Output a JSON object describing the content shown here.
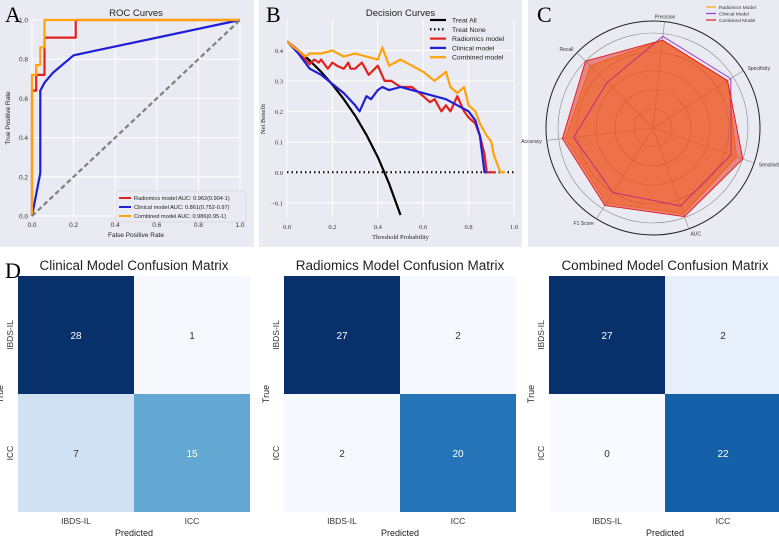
{
  "panel_letters": {
    "a": "A",
    "b": "B",
    "c": "C",
    "d": "D"
  },
  "colors": {
    "radiomics": "#e3211d",
    "clinical": "#1f1fd8",
    "combined": "#ffa20c",
    "chance": "#808080",
    "treat_all": "#000000",
    "cm_dark": "#08306b",
    "cm_light": "#f7fbff"
  },
  "chart_data": [
    {
      "type": "line",
      "id": "roc",
      "title": "ROC Curves",
      "xlabel": "False Positive Rate",
      "ylabel": "True Positive Rate",
      "xlim": [
        0,
        1
      ],
      "ylim": [
        0,
        1
      ],
      "xticks": [
        "0.0",
        "0.2",
        "0.4",
        "0.6",
        "0.8",
        "1.0"
      ],
      "yticks": [
        "0.0",
        "0.2",
        "0.4",
        "0.6",
        "0.8",
        "1.0"
      ],
      "legend_position": "bottom-right",
      "series": [
        {
          "name": "Radiomics model AUC: 0.962(0.904-1)",
          "color": "#e3211d",
          "x": [
            0,
            0,
            0.02,
            0.02,
            0.06,
            0.06,
            0.11,
            0.11,
            0.21,
            0.21,
            1.0
          ],
          "y": [
            0,
            0.64,
            0.64,
            0.72,
            0.72,
            0.91,
            0.91,
            0.91,
            0.91,
            1.0,
            1.0
          ]
        },
        {
          "name": "Clinical model AUC: 0.861(0.752-0.97)",
          "color": "#1f1fd8",
          "x": [
            0,
            0.04,
            0.04,
            0.06,
            0.1,
            0.2,
            1.0
          ],
          "y": [
            0,
            0.22,
            0.64,
            0.68,
            0.73,
            0.82,
            1.0
          ]
        },
        {
          "name": "Combined model AUC: 0.986(0.95-1)",
          "color": "#ffa20c",
          "x": [
            0,
            0,
            0.02,
            0.02,
            0.04,
            0.04,
            0.06,
            0.06,
            1.0
          ],
          "y": [
            0,
            0.72,
            0.72,
            0.77,
            0.77,
            0.86,
            0.86,
            1.0,
            1.0
          ]
        },
        {
          "name": "chance",
          "color": "#808080",
          "dashed": true,
          "x": [
            0,
            1
          ],
          "y": [
            0,
            1
          ]
        }
      ]
    },
    {
      "type": "line",
      "id": "dca",
      "title": "Decision Curves",
      "xlabel": "Threshold Probability",
      "ylabel": "Net Benefit",
      "xlim": [
        0,
        1
      ],
      "ylim": [
        -0.15,
        0.5
      ],
      "xticks": [
        "0.0",
        "0.2",
        "0.4",
        "0.6",
        "0.8",
        "1.0"
      ],
      "yticks": [
        "−0.1",
        "0.0",
        "0.1",
        "0.2",
        "0.3",
        "0.4"
      ],
      "legend_position": "top-right",
      "series": [
        {
          "name": "Treat All",
          "color": "#000000",
          "x": [
            0,
            0.05,
            0.1,
            0.15,
            0.2,
            0.25,
            0.3,
            0.35,
            0.4,
            0.45,
            0.5
          ],
          "y": [
            0.43,
            0.4,
            0.367,
            0.33,
            0.288,
            0.24,
            0.186,
            0.123,
            0.05,
            -0.037,
            -0.14
          ]
        },
        {
          "name": "Treat None",
          "color": "#000000",
          "dotted": true,
          "x": [
            0,
            1
          ],
          "y": [
            0,
            0
          ]
        },
        {
          "name": "Radiomics model",
          "color": "#e3211d",
          "x": [
            0,
            0.05,
            0.08,
            0.1,
            0.12,
            0.14,
            0.15,
            0.18,
            0.2,
            0.22,
            0.25,
            0.27,
            0.28,
            0.3,
            0.33,
            0.36,
            0.4,
            0.43,
            0.46,
            0.5,
            0.55,
            0.6,
            0.63,
            0.65,
            0.68,
            0.7,
            0.72,
            0.75,
            0.78,
            0.8,
            0.83,
            0.85,
            0.87,
            0.88,
            0.89,
            0.9,
            0.92
          ],
          "y": [
            0.43,
            0.4,
            0.37,
            0.355,
            0.37,
            0.36,
            0.37,
            0.34,
            0.36,
            0.35,
            0.34,
            0.36,
            0.34,
            0.34,
            0.36,
            0.32,
            0.35,
            0.3,
            0.3,
            0.28,
            0.28,
            0.25,
            0.23,
            0.24,
            0.2,
            0.22,
            0.2,
            0.25,
            0.2,
            0.18,
            0.16,
            0.12,
            0.06,
            0.0,
            0.0,
            0.0,
            0.0
          ]
        },
        {
          "name": "Clinical model",
          "color": "#1f1fd8",
          "x": [
            0,
            0.05,
            0.1,
            0.15,
            0.2,
            0.25,
            0.3,
            0.32,
            0.35,
            0.37,
            0.4,
            0.42,
            0.45,
            0.5,
            0.55,
            0.6,
            0.65,
            0.7,
            0.75,
            0.8,
            0.83,
            0.85,
            0.86,
            0.87,
            0.88
          ],
          "y": [
            0.43,
            0.39,
            0.34,
            0.32,
            0.29,
            0.26,
            0.22,
            0.2,
            0.25,
            0.24,
            0.27,
            0.28,
            0.27,
            0.28,
            0.27,
            0.26,
            0.25,
            0.24,
            0.22,
            0.2,
            0.17,
            0.12,
            0.06,
            0.0,
            0.0
          ]
        },
        {
          "name": "Combined model",
          "color": "#ffa20c",
          "x": [
            0,
            0.03,
            0.05,
            0.08,
            0.1,
            0.15,
            0.2,
            0.25,
            0.3,
            0.35,
            0.4,
            0.42,
            0.45,
            0.5,
            0.55,
            0.6,
            0.65,
            0.7,
            0.72,
            0.75,
            0.78,
            0.8,
            0.83,
            0.85,
            0.88,
            0.9,
            0.91,
            0.92,
            0.94,
            0.96
          ],
          "y": [
            0.43,
            0.41,
            0.4,
            0.38,
            0.39,
            0.39,
            0.4,
            0.38,
            0.39,
            0.38,
            0.37,
            0.41,
            0.35,
            0.37,
            0.35,
            0.33,
            0.3,
            0.33,
            0.28,
            0.26,
            0.28,
            0.22,
            0.2,
            0.16,
            0.12,
            0.1,
            0.06,
            0.04,
            0.0,
            0.0
          ]
        }
      ]
    },
    {
      "type": "radar",
      "id": "radar",
      "axes": [
        "Precision",
        "Specificity",
        "Sensitivity",
        "AUC",
        "F1 Score",
        "Accuracy",
        "Recall"
      ],
      "rmax": 1.0,
      "rings": 5,
      "legend_position": "top-right",
      "series": [
        {
          "name": "Radiomics Model",
          "color": "#ffa20c",
          "values": [
            0.93,
            0.93,
            0.93,
            0.96,
            0.93,
            0.93,
            0.93
          ]
        },
        {
          "name": "Clinical Model",
          "color": "#9b3bd6",
          "values": [
            0.97,
            0.97,
            0.87,
            0.87,
            0.8,
            0.84,
            0.68
          ]
        },
        {
          "name": "Combined Model",
          "color": "#e3211d",
          "values": [
            0.93,
            0.93,
            1.0,
            0.99,
            0.96,
            0.96,
            1.0
          ]
        }
      ]
    },
    {
      "type": "heatmap",
      "id": "cm_clinical",
      "title": "Clinical Model Confusion Matrix",
      "xlabel": "Predicted",
      "ylabel": "True",
      "labels": [
        "IBDS-IL",
        "ICC"
      ],
      "matrix": [
        [
          28,
          1
        ],
        [
          7,
          15
        ]
      ],
      "colors": [
        [
          "#08306b",
          "#f5f9fe"
        ],
        [
          "#cfe1f2",
          "#63a8d3"
        ]
      ],
      "text_colors": [
        [
          "#ffffff",
          "#333333"
        ],
        [
          "#333333",
          "#ffffff"
        ]
      ]
    },
    {
      "type": "heatmap",
      "id": "cm_radiomics",
      "title": "Radiomics Model Confusion Matrix",
      "xlabel": "Predicted",
      "ylabel": "True",
      "labels": [
        "IBDS-IL",
        "ICC"
      ],
      "matrix": [
        [
          27,
          2
        ],
        [
          2,
          20
        ]
      ],
      "colors": [
        [
          "#08306b",
          "#f5f9fe"
        ],
        [
          "#f5f9fe",
          "#2474b7"
        ]
      ],
      "text_colors": [
        [
          "#ffffff",
          "#333333"
        ],
        [
          "#333333",
          "#ffffff"
        ]
      ]
    },
    {
      "type": "heatmap",
      "id": "cm_combined",
      "title": "Combined Model Confusion Matrix",
      "xlabel": "Predicted",
      "ylabel": "True",
      "labels": [
        "IBDS-IL",
        "ICC"
      ],
      "matrix": [
        [
          27,
          2
        ],
        [
          0,
          22
        ]
      ],
      "colors": [
        [
          "#08306b",
          "#e7f0fa"
        ],
        [
          "#f7fbff",
          "#1561a9"
        ]
      ],
      "text_colors": [
        [
          "#ffffff",
          "#333333"
        ],
        [
          "#333333",
          "#ffffff"
        ]
      ]
    }
  ]
}
